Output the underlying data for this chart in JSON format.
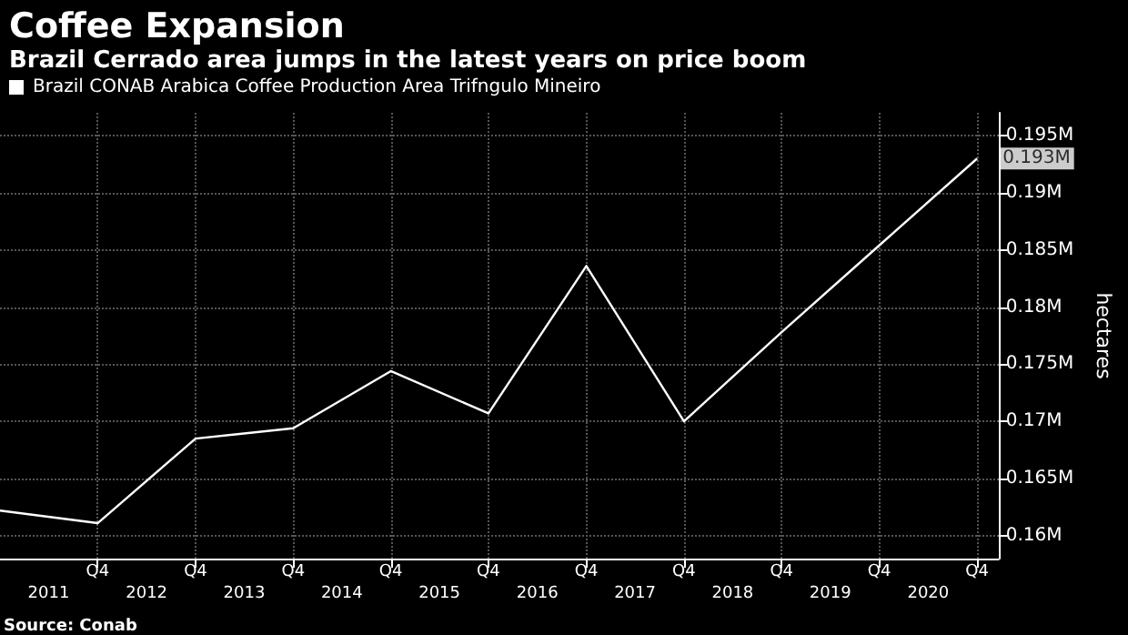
{
  "chart_data": {
    "type": "line",
    "title": "Coffee Expansion",
    "subtitle": "Brazil Cerrado area jumps in the latest years on price boom",
    "x": [
      "2010-10",
      "2011-10",
      "2012-10",
      "2013-10",
      "2014-10",
      "2015-10",
      "2016-10",
      "2017-10",
      "2018-10",
      "2019-10",
      "2020-10"
    ],
    "series": [
      {
        "name": "Brazil CONAB Arabica Coffee Production Area Trifngulo Mineiro",
        "color": "#ffffff",
        "values": [
          0.1622,
          0.1611,
          0.1685,
          0.1694,
          0.1744,
          0.1707,
          0.1836,
          0.17,
          0.1778,
          0.1854,
          0.193
        ]
      }
    ],
    "xlim": [
      "2010-10",
      "2020-12-20"
    ],
    "xticks": [
      {
        "value": "2011-10",
        "label": "Q4"
      },
      {
        "value": "2012-10",
        "label": "Q4"
      },
      {
        "value": "2013-10",
        "label": "Q4"
      },
      {
        "value": "2014-10",
        "label": "Q4"
      },
      {
        "value": "2015-10",
        "label": "Q4"
      },
      {
        "value": "2016-10",
        "label": "Q4"
      },
      {
        "value": "2017-10",
        "label": "Q4"
      },
      {
        "value": "2018-10",
        "label": "Q4"
      },
      {
        "value": "2019-10",
        "label": "Q4"
      },
      {
        "value": "2020-10",
        "label": "Q4"
      }
    ],
    "x2lim": [
      "2010-10",
      "2020-12-20"
    ],
    "x2ticks": [
      {
        "value": "2011-04",
        "label": "2011"
      },
      {
        "value": "2012-04",
        "label": "2012"
      },
      {
        "value": "2013-04",
        "label": "2013"
      },
      {
        "value": "2014-04",
        "label": "2014"
      },
      {
        "value": "2015-04",
        "label": "2015"
      },
      {
        "value": "2016-04",
        "label": "2016"
      },
      {
        "value": "2017-04",
        "label": "2017"
      },
      {
        "value": "2018-04",
        "label": "2018"
      },
      {
        "value": "2019-04",
        "label": "2019"
      },
      {
        "value": "2020-04",
        "label": "2020"
      }
    ],
    "ylim": [
      0.158,
      0.197
    ],
    "yticks": [
      {
        "value": 0.16,
        "label": "0.16M"
      },
      {
        "value": 0.165,
        "label": "0.165M"
      },
      {
        "value": 0.17,
        "label": "0.17M"
      },
      {
        "value": 0.175,
        "label": "0.175M"
      },
      {
        "value": 0.18,
        "label": "0.18M"
      },
      {
        "value": 0.185,
        "label": "0.185M"
      },
      {
        "value": 0.19,
        "label": "0.19M"
      },
      {
        "value": 0.195,
        "label": "0.195M"
      }
    ],
    "ylabel": "hectares",
    "annotations": [
      {
        "text": "0.193M",
        "x": "2020-10",
        "y": 0.193
      },
      "Source: Conab"
    ],
    "grid": true,
    "legend": "top left",
    "marker": "none",
    "line_style": "solid"
  }
}
